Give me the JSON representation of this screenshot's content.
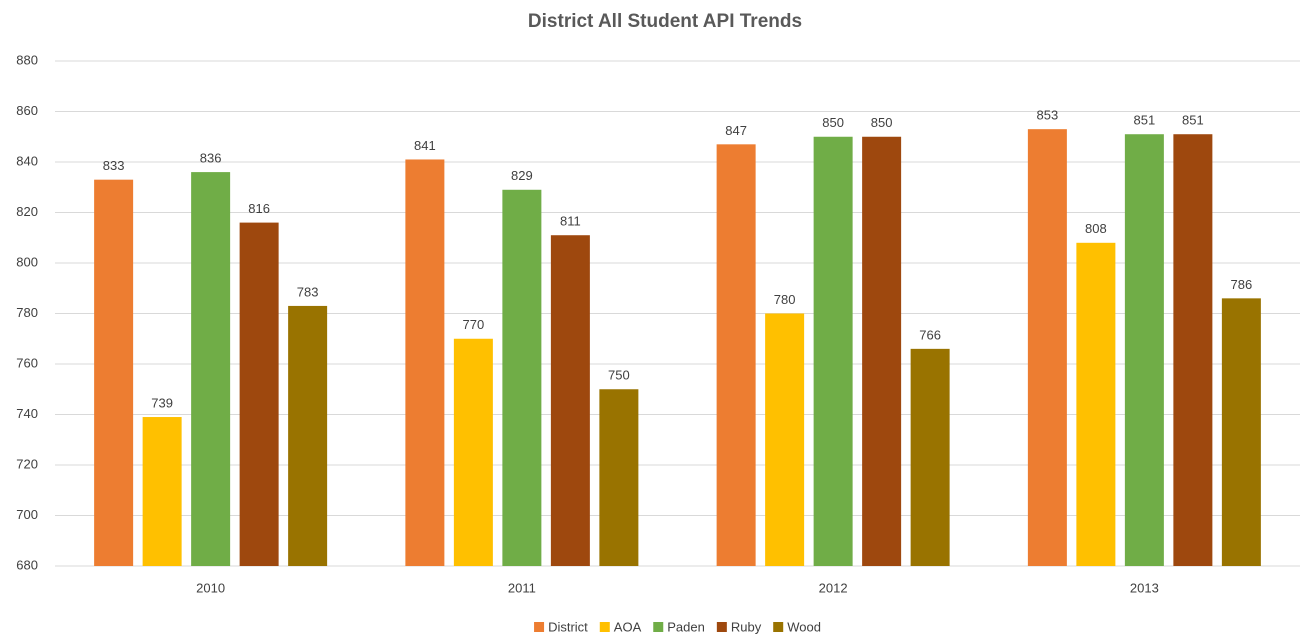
{
  "chart_data": {
    "type": "bar",
    "title": "District All Student API Trends",
    "categories": [
      "2010",
      "2011",
      "2012",
      "2013"
    ],
    "series": [
      {
        "name": "District",
        "color": "#ED7D31",
        "values": [
          833,
          841,
          847,
          853
        ]
      },
      {
        "name": "AOA",
        "color": "#FFC000",
        "values": [
          739,
          770,
          780,
          808
        ]
      },
      {
        "name": "Paden",
        "color": "#70AD47",
        "values": [
          836,
          829,
          850,
          851
        ]
      },
      {
        "name": "Ruby",
        "color": "#9E480E",
        "values": [
          816,
          811,
          850,
          851
        ]
      },
      {
        "name": "Wood",
        "color": "#997300",
        "values": [
          783,
          750,
          766,
          786
        ]
      }
    ],
    "ylim": [
      680,
      880
    ],
    "yticks": [
      680,
      700,
      720,
      740,
      760,
      780,
      800,
      820,
      840,
      860,
      880
    ],
    "grid": true,
    "legend": "bottom"
  }
}
